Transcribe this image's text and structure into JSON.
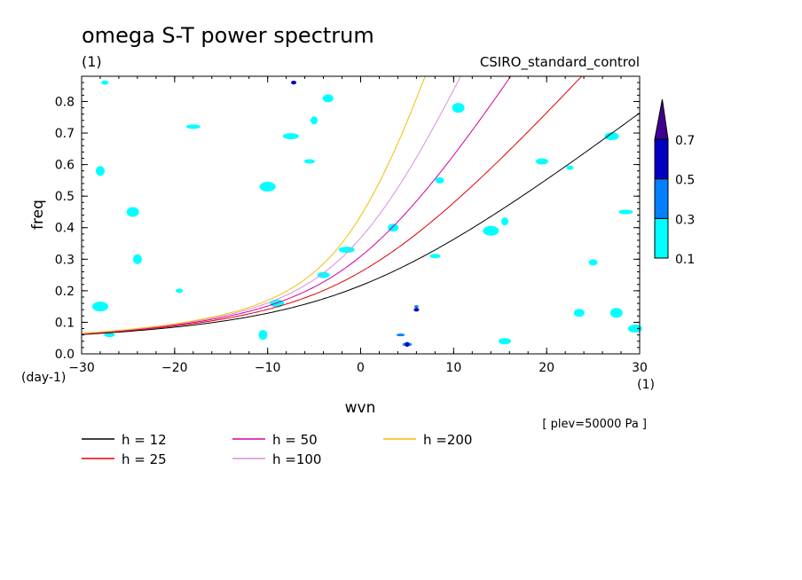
{
  "chart_data": {
    "type": "contour",
    "title": "omega S-T power spectrum",
    "subtitle_left": "(1)",
    "subtitle_right": "CSIRO_standard_control",
    "xlabel": "wvn",
    "ylabel": "freq",
    "x_unit": "(1)",
    "y_unit": "(day-1)",
    "annotation": "[ plev=50000 Pa ]",
    "xlim": [
      -30,
      30
    ],
    "ylim": [
      0,
      0.88
    ],
    "x_ticks": [
      -30,
      -20,
      -10,
      0,
      10,
      20,
      30
    ],
    "y_ticks": [
      0.0,
      0.1,
      0.2,
      0.3,
      0.4,
      0.5,
      0.6,
      0.7,
      0.8
    ],
    "x_tick_labels": [
      "−30",
      "−20",
      "−10",
      "0",
      "10",
      "20",
      "30"
    ],
    "y_tick_labels": [
      "0.0",
      "0.1",
      "0.2",
      "0.3",
      "0.4",
      "0.5",
      "0.6",
      "0.7",
      "0.8"
    ],
    "colorbar": {
      "levels": [
        "0.1",
        "0.3",
        "0.5",
        "0.7"
      ],
      "colors": [
        "#00ffff",
        "#0080ff",
        "#0000c0",
        "#400090"
      ]
    },
    "dispersion_curves": [
      {
        "name": "h = 12",
        "h": 12,
        "color": "#000000"
      },
      {
        "name": "h = 25",
        "h": 25,
        "color": "#e00000"
      },
      {
        "name": "h = 50",
        "h": 50,
        "color": "#d000a0"
      },
      {
        "name": "h =100",
        "h": 100,
        "color": "#d890d8"
      },
      {
        "name": "h =200",
        "h": 200,
        "color": "#f0c000"
      }
    ],
    "patches": [
      {
        "x": -27.5,
        "y": 0.86,
        "level": 0.1
      },
      {
        "x": -7.2,
        "y": 0.86,
        "level": 0.5
      },
      {
        "x": -3.5,
        "y": 0.81,
        "level": 0.1
      },
      {
        "x": 10.5,
        "y": 0.78,
        "level": 0.1
      },
      {
        "x": -18,
        "y": 0.72,
        "level": 0.1
      },
      {
        "x": -7.5,
        "y": 0.69,
        "level": 0.1
      },
      {
        "x": -5.0,
        "y": 0.74,
        "level": 0.1
      },
      {
        "x": -28,
        "y": 0.58,
        "level": 0.1
      },
      {
        "x": -5.5,
        "y": 0.61,
        "level": 0.1
      },
      {
        "x": 19.5,
        "y": 0.61,
        "level": 0.1
      },
      {
        "x": 27,
        "y": 0.69,
        "level": 0.1
      },
      {
        "x": -10,
        "y": 0.53,
        "level": 0.1
      },
      {
        "x": 22.5,
        "y": 0.59,
        "level": 0.1
      },
      {
        "x": 8.5,
        "y": 0.55,
        "level": 0.1
      },
      {
        "x": 3.5,
        "y": 0.4,
        "level": 0.1
      },
      {
        "x": -24.5,
        "y": 0.45,
        "level": 0.1
      },
      {
        "x": 28.5,
        "y": 0.45,
        "level": 0.1
      },
      {
        "x": -1.5,
        "y": 0.33,
        "level": 0.1
      },
      {
        "x": 15.5,
        "y": 0.42,
        "level": 0.1
      },
      {
        "x": -24,
        "y": 0.3,
        "level": 0.1
      },
      {
        "x": 8,
        "y": 0.31,
        "level": 0.1
      },
      {
        "x": -4,
        "y": 0.25,
        "level": 0.1
      },
      {
        "x": -9,
        "y": 0.16,
        "level": 0.1
      },
      {
        "x": -28,
        "y": 0.15,
        "level": 0.1
      },
      {
        "x": 6,
        "y": 0.15,
        "level": 0.3
      },
      {
        "x": 6,
        "y": 0.14,
        "level": 0.5
      },
      {
        "x": 23.5,
        "y": 0.13,
        "level": 0.1
      },
      {
        "x": 27.5,
        "y": 0.13,
        "level": 0.1
      },
      {
        "x": 4.3,
        "y": 0.06,
        "level": 0.3
      },
      {
        "x": 5.0,
        "y": 0.03,
        "level": 0.3
      },
      {
        "x": 5.0,
        "y": 0.03,
        "level": 0.5
      },
      {
        "x": -10.5,
        "y": 0.06,
        "level": 0.1
      },
      {
        "x": -27,
        "y": 0.06,
        "level": 0.1
      },
      {
        "x": 15.5,
        "y": 0.04,
        "level": 0.1
      },
      {
        "x": 29.5,
        "y": 0.08,
        "level": 0.1
      },
      {
        "x": 14,
        "y": 0.39,
        "level": 0.1
      },
      {
        "x": -19.5,
        "y": 0.2,
        "level": 0.1
      },
      {
        "x": 25,
        "y": 0.29,
        "level": 0.1
      }
    ]
  }
}
